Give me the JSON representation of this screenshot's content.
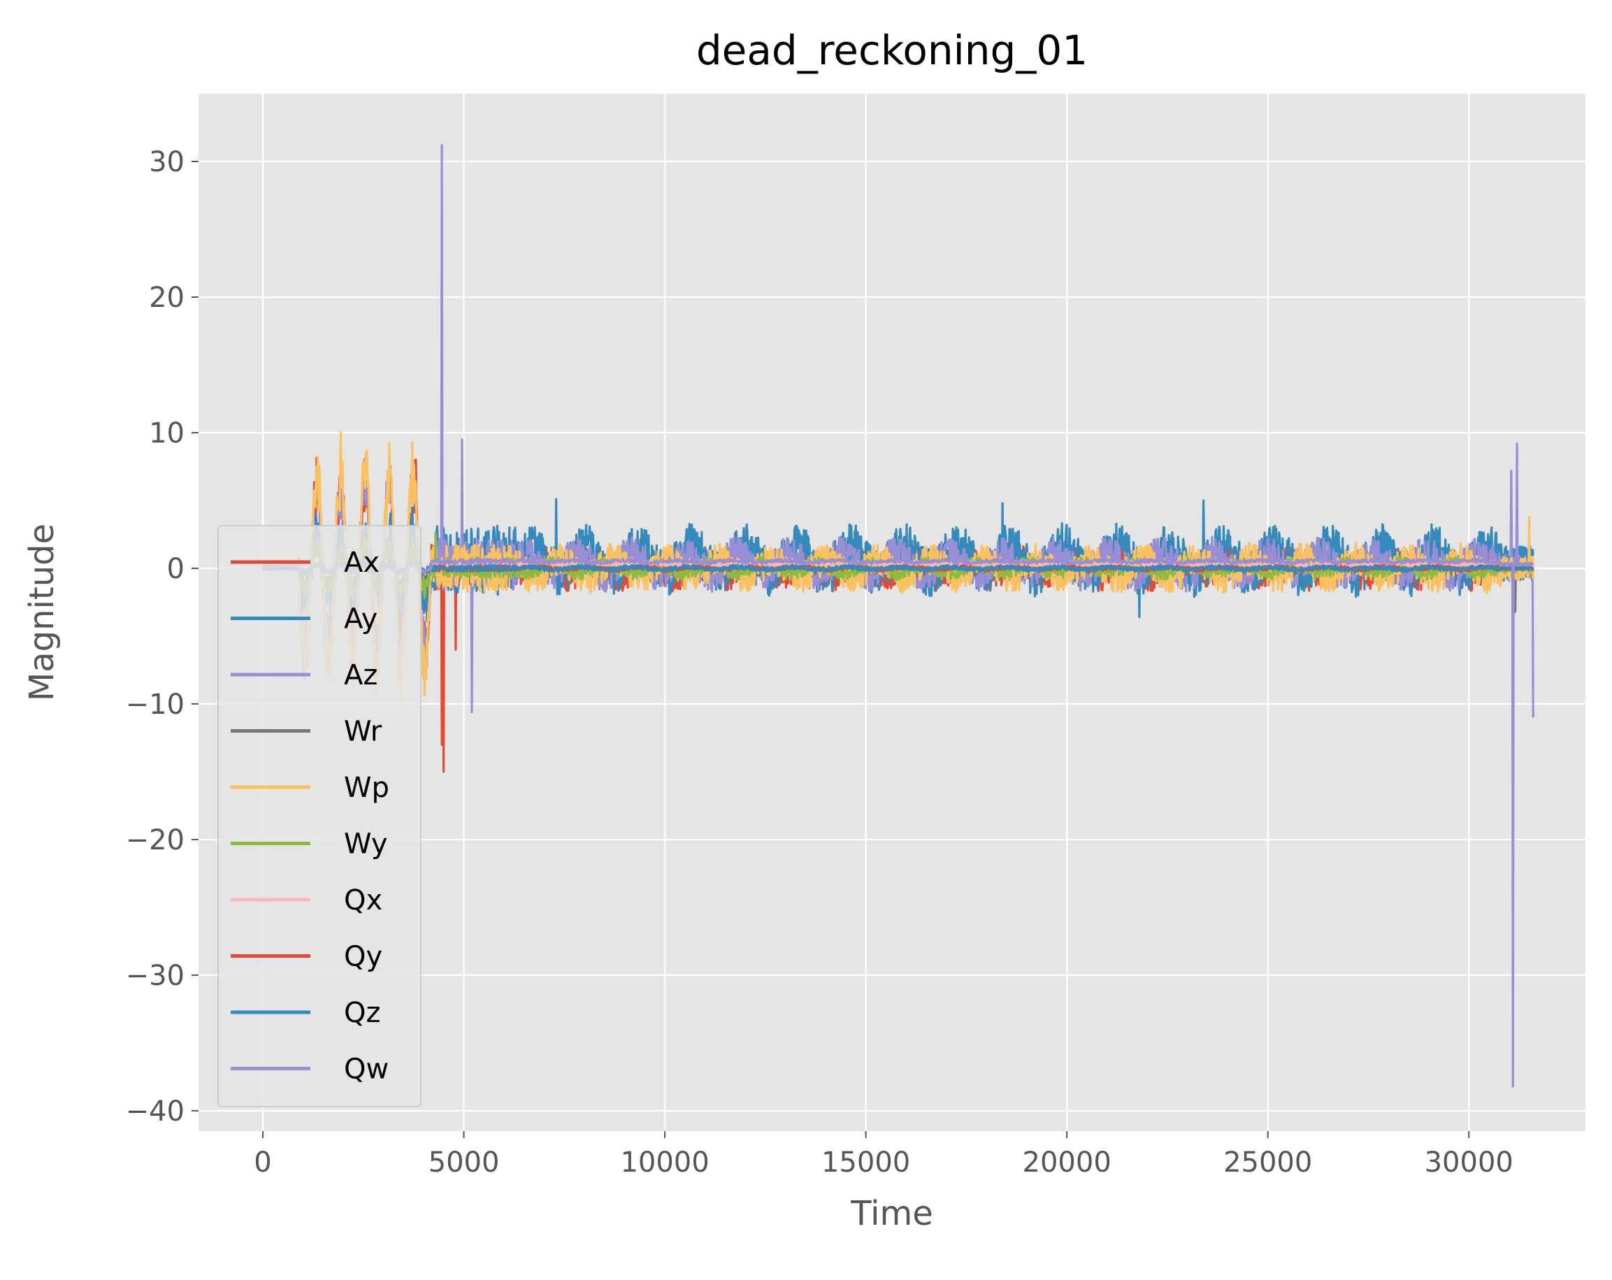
{
  "chart_data": {
    "type": "line",
    "title": "dead_reckoning_01",
    "xlabel": "Time",
    "ylabel": "Magnitude",
    "xlim": [
      -1600,
      32900
    ],
    "ylim": [
      -41.5,
      35
    ],
    "xticks": [
      0,
      5000,
      10000,
      15000,
      20000,
      25000,
      30000
    ],
    "xtick_labels": [
      "0",
      "5000",
      "10000",
      "15000",
      "20000",
      "25000",
      "30000"
    ],
    "yticks": [
      30,
      20,
      10,
      0,
      -10,
      -20,
      -30,
      -40
    ],
    "ytick_labels": [
      "30",
      "20",
      "10",
      "0",
      "−10",
      "−20",
      "−30",
      "−40"
    ],
    "grid": true,
    "legend_position": "center-left",
    "x_range": [
      0,
      31600
    ],
    "series": [
      {
        "name": "Ax",
        "color": "#E24A33",
        "noise": 1.0,
        "offset": 0.0,
        "startup_amp": 7.5,
        "spikes": [
          {
            "x": 4500,
            "y": -15.0
          },
          {
            "x": 4450,
            "y": -13.0
          },
          {
            "x": 3800,
            "y": 8.0
          },
          {
            "x": 4800,
            "y": -6.0
          }
        ]
      },
      {
        "name": "Ay",
        "color": "#348ABD",
        "noise": 1.6,
        "offset": 0.6,
        "startup_amp": 3.0,
        "spikes": [
          {
            "x": 7300,
            "y": 5.1
          },
          {
            "x": 23400,
            "y": 5.0
          },
          {
            "x": 18400,
            "y": 4.8
          },
          {
            "x": 21800,
            "y": -3.6
          }
        ]
      },
      {
        "name": "Az",
        "color": "#988ED5",
        "noise": 1.2,
        "offset": 0.3,
        "startup_amp": 8.0,
        "spikes": [
          {
            "x": 4450,
            "y": 31.2
          },
          {
            "x": 4950,
            "y": 9.5
          },
          {
            "x": 5200,
            "y": -10.6
          },
          {
            "x": 31200,
            "y": 9.2
          },
          {
            "x": 31050,
            "y": 7.2
          },
          {
            "x": 31600,
            "y": -11.0
          }
        ]
      },
      {
        "name": "Wr",
        "color": "#777777",
        "noise": 0.4,
        "offset": 0.0,
        "startup_amp": 1.5,
        "spikes": [
          {
            "x": 31150,
            "y": -3.2
          }
        ]
      },
      {
        "name": "Wp",
        "color": "#FBC15E",
        "noise": 1.1,
        "offset": 0.0,
        "startup_amp": 9.2,
        "spikes": [
          {
            "x": 31500,
            "y": 3.8
          }
        ]
      },
      {
        "name": "Wy",
        "color": "#8EBA42",
        "noise": 0.5,
        "offset": 0.0,
        "startup_amp": 2.0,
        "spikes": [
          {
            "x": 4300,
            "y": 2.6
          }
        ]
      },
      {
        "name": "Qx",
        "color": "#FFB5B8",
        "noise": 0.15,
        "offset": 0.3,
        "startup_amp": 0.3,
        "spikes": []
      },
      {
        "name": "Qy",
        "color": "#E24A33",
        "noise": 0.15,
        "offset": 0.0,
        "startup_amp": 0.3,
        "spikes": []
      },
      {
        "name": "Qz",
        "color": "#348ABD",
        "noise": 0.15,
        "offset": 0.0,
        "startup_amp": 0.3,
        "spikes": []
      },
      {
        "name": "Qw",
        "color": "#988ED5",
        "noise": 0.12,
        "offset": 0.5,
        "startup_amp": 0.3,
        "spikes": [
          {
            "x": 31100,
            "y": -38.2
          }
        ]
      }
    ]
  },
  "style": {
    "plot_background": "#E5E5E5",
    "grid_color": "#FFFFFF",
    "legend_background": "#E5E5E5",
    "legend_border": "#CCCCCC"
  }
}
